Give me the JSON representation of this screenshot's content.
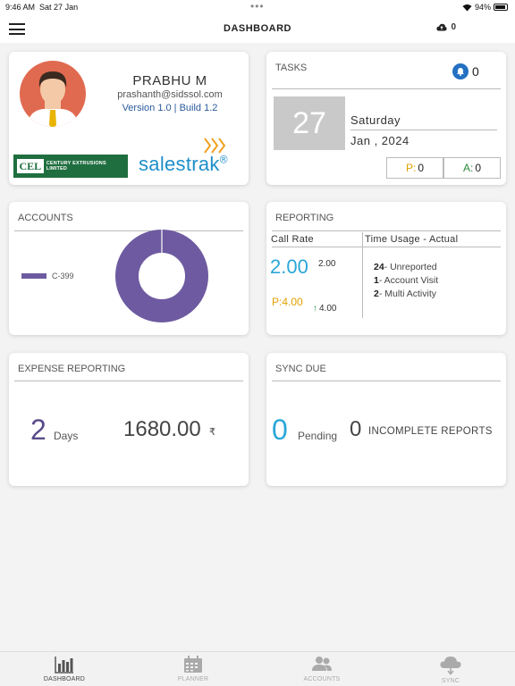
{
  "status_bar": {
    "time": "9:46 AM",
    "date": "Sat 27 Jan",
    "dots": "•••",
    "battery": "94%"
  },
  "nav": {
    "title": "DASHBOARD",
    "sync_count": "0"
  },
  "profile": {
    "name": "PRABHU M",
    "email": "prashanth@sidssol.com",
    "version": "Version 1.0 | Build 1.2",
    "company_logo_text": "CENTURY EXTRUSIONS LIMITED",
    "company_logo_mark": "CEL",
    "app_logo_text": "salestrak",
    "app_logo_mark": "®"
  },
  "tasks": {
    "heading": "TASKS",
    "notification_count": "0",
    "day": "27",
    "weekday": "Saturday",
    "month_year": "Jan , 2024",
    "planned_label": "P:",
    "planned_value": "0",
    "actual_label": "A:",
    "actual_value": "0"
  },
  "accounts": {
    "heading": "ACCOUNTS",
    "legend_label": "C-399",
    "legend_color": "#6d5aa0"
  },
  "reporting": {
    "heading": "REPORTING",
    "call_rate_heading": "Call Rate",
    "time_usage_heading": "Time Usage - Actual",
    "call_rate_value": "2.00",
    "call_rate_small": "2.00",
    "planned_value": "P:4.00",
    "trend_value": "4.00",
    "time_usage": [
      {
        "count": "24",
        "label": "- Unreported"
      },
      {
        "count": "1",
        "label": "- Account Visit"
      },
      {
        "count": "2",
        "label": "- Multi Activity"
      }
    ]
  },
  "expense": {
    "heading": "EXPENSE REPORTING",
    "days_value": "2",
    "days_label": "Days",
    "amount": "1680.00",
    "currency": "₹"
  },
  "sync_due": {
    "heading": "SYNC DUE",
    "pending_value": "0",
    "pending_label": "Pending",
    "incomplete_value": "0",
    "incomplete_label": "INCOMPLETE REPORTS"
  },
  "tabs": [
    {
      "label": "DASHBOARD",
      "icon": "bar-chart-icon",
      "active": true
    },
    {
      "label": "PLANNER",
      "icon": "calendar-icon",
      "active": false
    },
    {
      "label": "ACCOUNTS",
      "icon": "users-icon",
      "active": false
    },
    {
      "label": "SYNC",
      "icon": "cloud-sync-icon",
      "active": false
    }
  ],
  "colors": {
    "accent_blue": "#2aa7d8",
    "planned_yellow": "#e0a100",
    "actual_green": "#2a8a3a",
    "donut_purple": "#6d5aa0"
  }
}
